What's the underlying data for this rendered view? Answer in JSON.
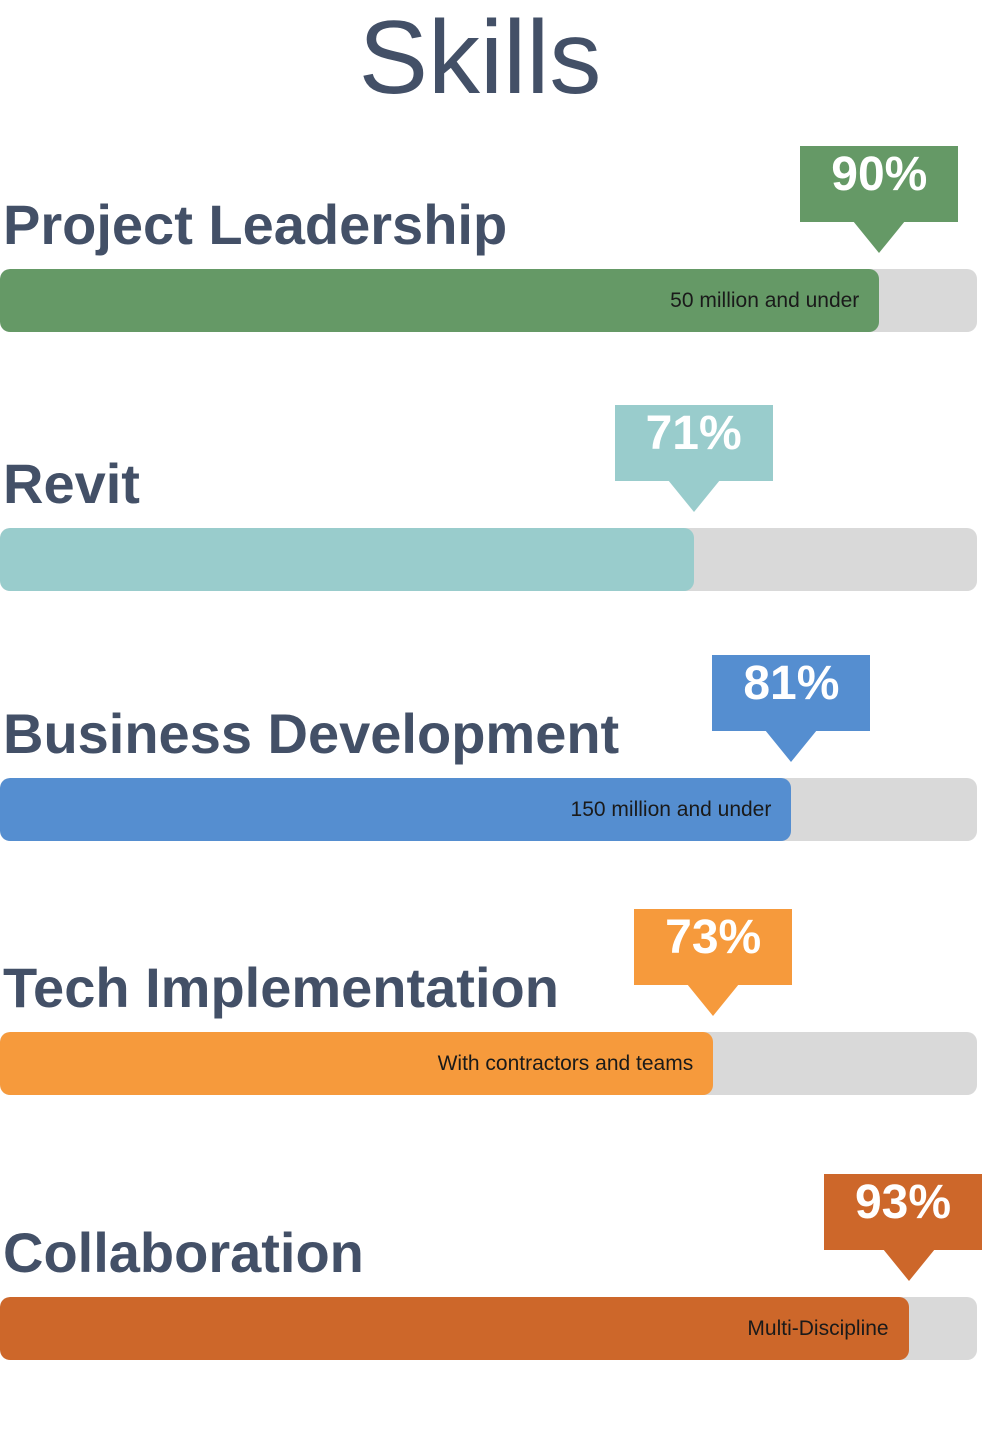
{
  "title": "Skills",
  "chart_data": {
    "type": "bar",
    "orientation": "horizontal",
    "title": "Skills",
    "categories": [
      "Project Leadership",
      "Revit",
      "Business Development",
      "Tech Implementation",
      "Collaboration"
    ],
    "values": [
      90,
      71,
      81,
      73,
      93
    ],
    "value_labels": [
      "90%",
      "71%",
      "81%",
      "73%",
      "93%"
    ],
    "notes": [
      "50 million and under",
      "",
      "150 million and under",
      "With contractors and teams",
      "Multi-Discipline"
    ],
    "colors": [
      "#659966",
      "#99cccc",
      "#558ed0",
      "#f69a3c",
      "#cd672a"
    ],
    "track_color": "#d9d9d9",
    "xlim": [
      0,
      100
    ]
  },
  "skills": [
    {
      "name": "Project Leadership",
      "value": 90,
      "label": "90%",
      "note": "50 million and under",
      "color": "#659966"
    },
    {
      "name": "Revit",
      "value": 71,
      "label": "71%",
      "note": "",
      "color": "#99cccc"
    },
    {
      "name": "Business Development",
      "value": 81,
      "label": "81%",
      "note": "150 million and under",
      "color": "#558ed0"
    },
    {
      "name": "Tech Implementation",
      "value": 73,
      "label": "73%",
      "note": "With contractors and teams",
      "color": "#f69a3c"
    },
    {
      "name": "Collaboration",
      "value": 93,
      "label": "93%",
      "note": "Multi-Discipline",
      "color": "#cd672a"
    }
  ]
}
